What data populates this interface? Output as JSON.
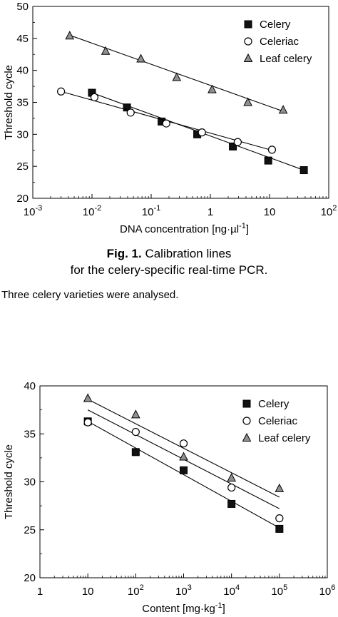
{
  "chart_data": [
    {
      "type": "scatter",
      "xscale": "log",
      "xlabel": "DNA concentration [ng·µl-1]",
      "ylabel": "Threshold cycle",
      "xlim": [
        0.001,
        100
      ],
      "ylim": [
        20,
        50
      ],
      "xtick_labels": [
        {
          "base": "10",
          "exp": "-3"
        },
        {
          "base": "10",
          "exp": "-2"
        },
        {
          "base": "10",
          "exp": "-1"
        },
        {
          "base": "1",
          "exp": ""
        },
        {
          "base": "10",
          "exp": ""
        },
        {
          "base": "10",
          "exp": "2"
        }
      ],
      "ytick_labels": [
        "20",
        "25",
        "30",
        "35",
        "40",
        "45",
        "50"
      ],
      "legend_position": "top-right",
      "series": [
        {
          "name": "Celery",
          "marker": "square",
          "color": "#111111",
          "x": [
            0.01,
            0.039,
            0.15,
            0.6,
            2.4,
            9.5,
            38
          ],
          "y": [
            36.5,
            34.2,
            32.0,
            30.0,
            28.1,
            25.9,
            24.4
          ],
          "fit": [
            [
              0.01,
              36.5
            ],
            [
              38,
              24.4
            ]
          ]
        },
        {
          "name": "Celeriac",
          "marker": "circle",
          "color": "#ffffff",
          "x": [
            0.003,
            0.011,
            0.045,
            0.18,
            0.72,
            2.9,
            11
          ],
          "y": [
            36.7,
            35.8,
            33.4,
            31.7,
            30.3,
            28.8,
            27.6
          ],
          "fit": [
            [
              0.003,
              36.7
            ],
            [
              11,
              27.5
            ]
          ]
        },
        {
          "name": "Leaf celery",
          "marker": "triangle",
          "color": "#909090",
          "x": [
            0.0042,
            0.017,
            0.067,
            0.27,
            1.07,
            4.3,
            17
          ],
          "y": [
            45.4,
            43.0,
            41.8,
            38.9,
            37.0,
            35.0,
            33.8
          ],
          "fit": [
            [
              0.0042,
              45.5
            ],
            [
              17,
              33.6
            ]
          ]
        }
      ]
    },
    {
      "type": "scatter",
      "xscale": "log",
      "xlabel": "Content [mg·kg-1]",
      "ylabel": "Threshold cycle",
      "xlim": [
        1,
        1000000
      ],
      "ylim": [
        20,
        40
      ],
      "xtick_labels": [
        {
          "base": "1",
          "exp": ""
        },
        {
          "base": "10",
          "exp": ""
        },
        {
          "base": "10",
          "exp": "2"
        },
        {
          "base": "10",
          "exp": "3"
        },
        {
          "base": "10",
          "exp": "4"
        },
        {
          "base": "10",
          "exp": "5"
        },
        {
          "base": "10",
          "exp": "6"
        }
      ],
      "ytick_labels": [
        "20",
        "25",
        "30",
        "35",
        "40"
      ],
      "legend_position": "top-right",
      "series": [
        {
          "name": "Celery",
          "marker": "square",
          "color": "#111111",
          "x": [
            10,
            100,
            1000,
            10000,
            100000
          ],
          "y": [
            36.3,
            33.1,
            31.2,
            27.7,
            25.1
          ],
          "fit": [
            [
              10,
              36.3
            ],
            [
              100000,
              25.2
            ]
          ]
        },
        {
          "name": "Celeriac",
          "marker": "circle",
          "color": "#ffffff",
          "x": [
            10,
            100,
            1000,
            10000,
            100000
          ],
          "y": [
            36.2,
            35.2,
            34.0,
            29.4,
            26.2
          ],
          "fit": [
            [
              10,
              37.5
            ],
            [
              100000,
              27.2
            ]
          ]
        },
        {
          "name": "Leaf celery",
          "marker": "triangle",
          "color": "#909090",
          "x": [
            10,
            100,
            1000,
            10000,
            100000
          ],
          "y": [
            38.7,
            37.0,
            32.6,
            30.4,
            29.3
          ],
          "fit": [
            [
              10,
              38.6
            ],
            [
              100000,
              28.4
            ]
          ]
        }
      ]
    }
  ],
  "caption": {
    "label": "Fig. 1.",
    "line1": "Calibration lines",
    "line2": "for the celery-specific real-time PCR."
  },
  "note": "Three celery varieties were analysed."
}
